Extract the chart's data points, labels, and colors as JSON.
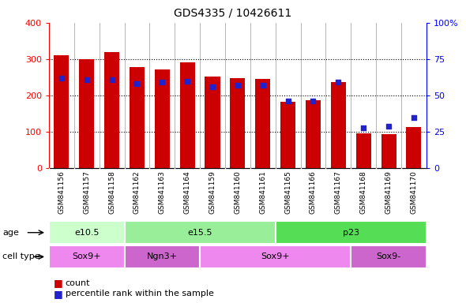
{
  "title": "GDS4335 / 10426611",
  "samples": [
    "GSM841156",
    "GSM841157",
    "GSM841158",
    "GSM841162",
    "GSM841163",
    "GSM841164",
    "GSM841159",
    "GSM841160",
    "GSM841161",
    "GSM841165",
    "GSM841166",
    "GSM841167",
    "GSM841168",
    "GSM841169",
    "GSM841170"
  ],
  "counts": [
    310,
    300,
    320,
    278,
    272,
    292,
    252,
    248,
    246,
    183,
    187,
    237,
    95,
    93,
    113
  ],
  "percentiles": [
    62,
    61,
    61,
    58,
    59,
    60,
    56,
    57,
    57,
    46,
    46,
    59,
    28,
    29,
    35
  ],
  "age_groups": [
    {
      "label": "e10.5",
      "start": 0,
      "end": 3,
      "color": "#ccffcc"
    },
    {
      "label": "e15.5",
      "start": 3,
      "end": 9,
      "color": "#99ee99"
    },
    {
      "label": "p23",
      "start": 9,
      "end": 15,
      "color": "#55dd55"
    }
  ],
  "cell_groups": [
    {
      "label": "Sox9+",
      "start": 0,
      "end": 3,
      "color": "#ee88ee"
    },
    {
      "label": "Ngn3+",
      "start": 3,
      "end": 6,
      "color": "#cc66cc"
    },
    {
      "label": "Sox9+",
      "start": 6,
      "end": 12,
      "color": "#ee88ee"
    },
    {
      "label": "Sox9-",
      "start": 12,
      "end": 15,
      "color": "#cc66cc"
    }
  ],
  "bar_color": "#cc0000",
  "dot_color": "#2222cc",
  "ylim_left": [
    0,
    400
  ],
  "ylim_right": [
    0,
    100
  ],
  "yticks_left": [
    0,
    100,
    200,
    300,
    400
  ],
  "yticks_right": [
    0,
    25,
    50,
    75,
    100
  ],
  "ytick_labels_right": [
    "0",
    "25",
    "50",
    "75",
    "100%"
  ],
  "grid_vals": [
    100,
    200,
    300
  ],
  "background_color": "#ffffff",
  "plot_bg_color": "#ffffff",
  "xtick_bg": "#dddddd"
}
